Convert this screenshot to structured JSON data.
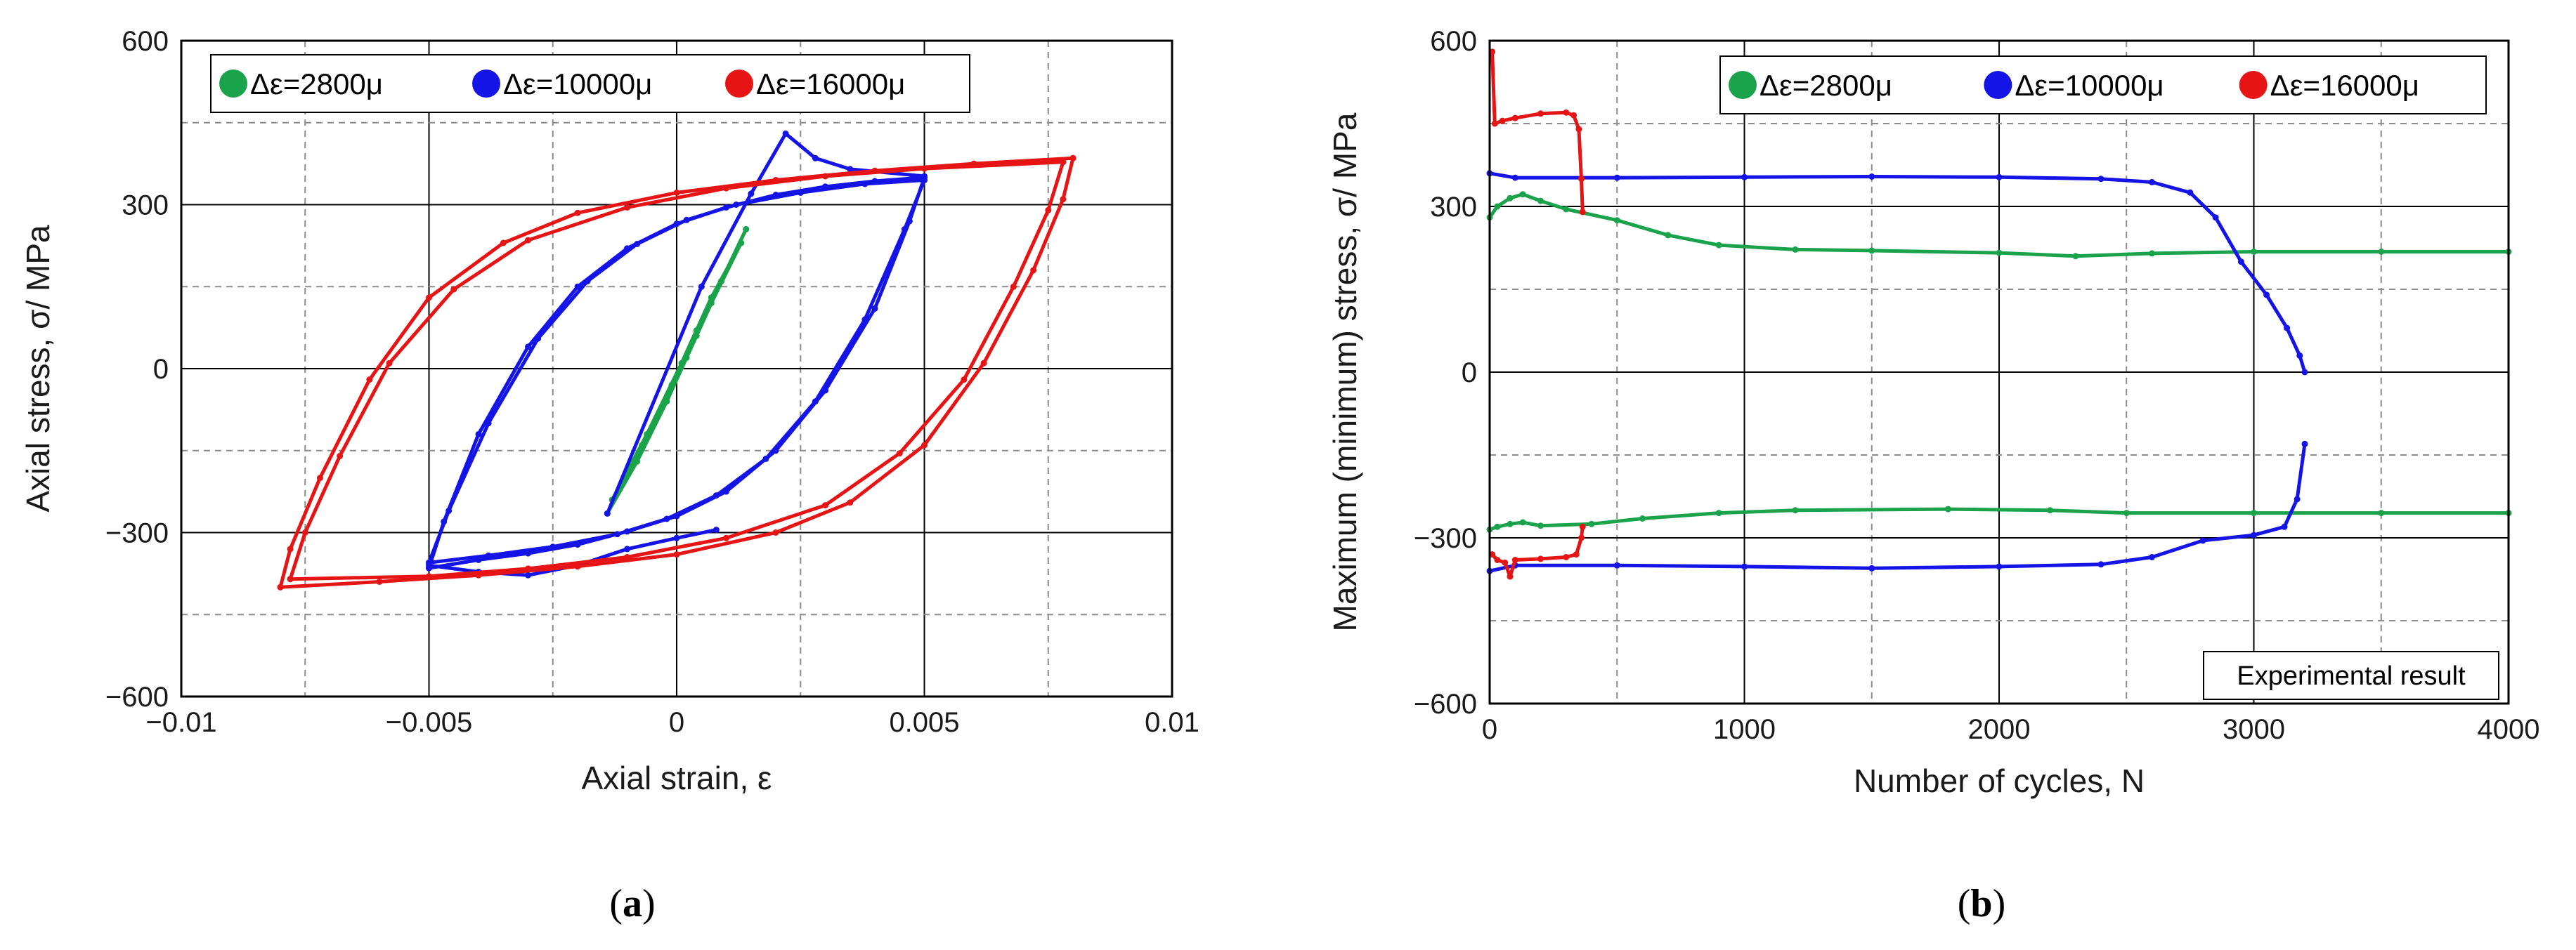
{
  "chart_data": [
    {
      "type": "scatter",
      "panel": "a",
      "title": "",
      "xlabel": "Axial strain, ε",
      "ylabel": "Axial stress, σ/ MPa",
      "xlim": [
        -0.01,
        0.01
      ],
      "ylim": [
        -600,
        600
      ],
      "xticks": [
        -0.01,
        -0.005,
        0,
        0.005,
        0.01
      ],
      "xtick_labels": [
        "−0.01",
        "−0.005",
        "0",
        "0.005",
        "0.01"
      ],
      "yticks": [
        -600,
        -300,
        0,
        300,
        600
      ],
      "ytick_labels": [
        "−600",
        "−300",
        "0",
        "300",
        "600"
      ],
      "grid": true,
      "legend_position": "top-left",
      "series": [
        {
          "name": "Δε=2800μ",
          "color": "#1aa34a",
          "loops": [
            {
              "upper": [
                [
                  -0.0014,
                  -265
                ],
                [
                  -0.0008,
                  -170
                ],
                [
                  -0.0002,
                  -60
                ],
                [
                  0.0004,
                  60
                ],
                [
                  0.0009,
                  160
                ],
                [
                  0.0014,
                  255
                ]
              ],
              "lower": [
                [
                  0.0014,
                  255
                ],
                [
                  0.0009,
                  160
                ],
                [
                  0.0004,
                  70
                ],
                [
                  -0.0001,
                  -30
                ],
                [
                  -0.0007,
                  -140
                ],
                [
                  -0.0014,
                  -265
                ]
              ]
            },
            {
              "upper": [
                [
                  -0.0013,
                  -240
                ],
                [
                  -0.0006,
                  -120
                ],
                [
                  0.0001,
                  10
                ],
                [
                  0.0007,
                  130
                ],
                [
                  0.0013,
                  230
                ]
              ],
              "lower": [
                [
                  0.0013,
                  230
                ],
                [
                  0.0007,
                  120
                ],
                [
                  0.0002,
                  20
                ],
                [
                  -0.0004,
                  -90
                ],
                [
                  -0.0013,
                  -240
                ]
              ]
            }
          ]
        },
        {
          "name": "Δε=10000μ",
          "color": "#1414e6",
          "loops": [
            {
              "upper": [
                [
                  -0.005,
                  -365
                ],
                [
                  -0.0047,
                  -280
                ],
                [
                  -0.004,
                  -120
                ],
                [
                  -0.003,
                  40
                ],
                [
                  -0.002,
                  150
                ],
                [
                  -0.001,
                  220
                ],
                [
                  0,
                  265
                ],
                [
                  0.001,
                  295
                ],
                [
                  0.002,
                  318
                ],
                [
                  0.003,
                  333
                ],
                [
                  0.004,
                  343
                ],
                [
                  0.005,
                  350
                ]
              ],
              "lower": [
                [
                  0.005,
                  350
                ],
                [
                  0.0047,
                  270
                ],
                [
                  0.004,
                  110
                ],
                [
                  0.003,
                  -40
                ],
                [
                  0.002,
                  -150
                ],
                [
                  0.001,
                  -225
                ],
                [
                  0,
                  -270
                ],
                [
                  -0.001,
                  -298
                ],
                [
                  -0.002,
                  -322
                ],
                [
                  -0.003,
                  -338
                ],
                [
                  -0.004,
                  -350
                ],
                [
                  -0.005,
                  -365
                ]
              ]
            },
            {
              "upper": [
                [
                  -0.005,
                  -355
                ],
                [
                  -0.0046,
                  -260
                ],
                [
                  -0.0038,
                  -100
                ],
                [
                  -0.0028,
                  55
                ],
                [
                  -0.0018,
                  160
                ],
                [
                  -0.0008,
                  228
                ],
                [
                  0.0002,
                  272
                ],
                [
                  0.0012,
                  300
                ],
                [
                  0.0025,
                  322
                ],
                [
                  0.0038,
                  338
                ],
                [
                  0.005,
                  345
                ]
              ],
              "lower": [
                [
                  0.005,
                  345
                ],
                [
                  0.0046,
                  255
                ],
                [
                  0.0038,
                  90
                ],
                [
                  0.0028,
                  -60
                ],
                [
                  0.0018,
                  -165
                ],
                [
                  0.0008,
                  -232
                ],
                [
                  -0.0002,
                  -275
                ],
                [
                  -0.0012,
                  -303
                ],
                [
                  -0.0025,
                  -326
                ],
                [
                  -0.0038,
                  -342
                ],
                [
                  -0.005,
                  -355
                ]
              ]
            },
            {
              "upper": [
                [
                  -0.0014,
                  -265
                ],
                [
                  0.0005,
                  150
                ],
                [
                  0.0015,
                  320
                ],
                [
                  0.0022,
                  430
                ],
                [
                  0.0028,
                  385
                ],
                [
                  0.0035,
                  365
                ],
                [
                  0.005,
                  352
                ]
              ],
              "lower": [
                [
                  -0.005,
                  -360
                ],
                [
                  -0.004,
                  -372
                ],
                [
                  -0.003,
                  -378
                ],
                [
                  -0.002,
                  -360
                ],
                [
                  -0.001,
                  -330
                ],
                [
                  0,
                  -310
                ],
                [
                  0.0008,
                  -295
                ]
              ]
            }
          ]
        },
        {
          "name": "Δε=16000μ",
          "color": "#e61414",
          "loops": [
            {
              "upper": [
                [
                  -0.008,
                  -400
                ],
                [
                  -0.0078,
                  -330
                ],
                [
                  -0.0072,
                  -200
                ],
                [
                  -0.0062,
                  -20
                ],
                [
                  -0.005,
                  130
                ],
                [
                  -0.0035,
                  230
                ],
                [
                  -0.002,
                  285
                ],
                [
                  0,
                  322
                ],
                [
                  0.002,
                  345
                ],
                [
                  0.004,
                  362
                ],
                [
                  0.006,
                  375
                ],
                [
                  0.008,
                  385
                ]
              ],
              "lower": [
                [
                  0.008,
                  385
                ],
                [
                  0.0078,
                  310
                ],
                [
                  0.0072,
                  180
                ],
                [
                  0.0062,
                  10
                ],
                [
                  0.005,
                  -140
                ],
                [
                  0.0035,
                  -245
                ],
                [
                  0.002,
                  -300
                ],
                [
                  0,
                  -340
                ],
                [
                  -0.002,
                  -362
                ],
                [
                  -0.004,
                  -378
                ],
                [
                  -0.006,
                  -390
                ],
                [
                  -0.008,
                  -400
                ]
              ]
            },
            {
              "upper": [
                [
                  -0.0078,
                  -385
                ],
                [
                  -0.0075,
                  -300
                ],
                [
                  -0.0068,
                  -160
                ],
                [
                  -0.0058,
                  10
                ],
                [
                  -0.0045,
                  145
                ],
                [
                  -0.003,
                  235
                ],
                [
                  -0.001,
                  295
                ],
                [
                  0.001,
                  330
                ],
                [
                  0.003,
                  352
                ],
                [
                  0.005,
                  366
                ],
                [
                  0.0078,
                  378
                ]
              ],
              "lower": [
                [
                  0.0078,
                  378
                ],
                [
                  0.0075,
                  290
                ],
                [
                  0.0068,
                  150
                ],
                [
                  0.0058,
                  -20
                ],
                [
                  0.0045,
                  -155
                ],
                [
                  0.003,
                  -250
                ],
                [
                  0.001,
                  -310
                ],
                [
                  -0.001,
                  -345
                ],
                [
                  -0.003,
                  -366
                ],
                [
                  -0.005,
                  -380
                ],
                [
                  -0.0078,
                  -385
                ]
              ]
            }
          ]
        }
      ]
    },
    {
      "type": "scatter",
      "panel": "b",
      "title": "",
      "xlabel": "Number of cycles, N",
      "ylabel": "Maximum (minimum) stress, σ/ MPa",
      "xlim": [
        0,
        4000
      ],
      "ylim": [
        -600,
        600
      ],
      "xticks": [
        0,
        1000,
        2000,
        3000,
        4000
      ],
      "xtick_labels": [
        "0",
        "1000",
        "2000",
        "3000",
        "4000"
      ],
      "yticks": [
        -600,
        -300,
        0,
        300,
        600
      ],
      "ytick_labels": [
        "−600",
        "−300",
        "0",
        "300",
        "600"
      ],
      "grid": true,
      "legend_position": "top-right",
      "annotation": "Experimental result",
      "series": [
        {
          "name": "Δε=2800μ",
          "color": "#1aa34a",
          "max": [
            [
              0,
              280
            ],
            [
              30,
              300
            ],
            [
              80,
              315
            ],
            [
              130,
              322
            ],
            [
              200,
              310
            ],
            [
              300,
              295
            ],
            [
              500,
              275
            ],
            [
              700,
              248
            ],
            [
              900,
              230
            ],
            [
              1200,
              222
            ],
            [
              1500,
              220
            ],
            [
              2000,
              216
            ],
            [
              2300,
              210
            ],
            [
              2600,
              215
            ],
            [
              3000,
              218
            ],
            [
              3500,
              218
            ],
            [
              4000,
              218
            ]
          ],
          "min": [
            [
              0,
              -285
            ],
            [
              30,
              -280
            ],
            [
              80,
              -275
            ],
            [
              130,
              -272
            ],
            [
              200,
              -278
            ],
            [
              400,
              -275
            ],
            [
              600,
              -265
            ],
            [
              900,
              -255
            ],
            [
              1200,
              -250
            ],
            [
              1800,
              -248
            ],
            [
              2200,
              -250
            ],
            [
              2500,
              -255
            ],
            [
              3000,
              -255
            ],
            [
              3500,
              -255
            ],
            [
              4000,
              -255
            ]
          ]
        },
        {
          "name": "Δε=10000μ",
          "color": "#1414e6",
          "max": [
            [
              0,
              360
            ],
            [
              100,
              352
            ],
            [
              500,
              352
            ],
            [
              1000,
              353
            ],
            [
              1500,
              354
            ],
            [
              2000,
              353
            ],
            [
              2400,
              350
            ],
            [
              2600,
              344
            ],
            [
              2750,
              325
            ],
            [
              2850,
              280
            ],
            [
              2950,
              200
            ],
            [
              3050,
              140
            ],
            [
              3130,
              80
            ],
            [
              3180,
              30
            ],
            [
              3200,
              0
            ]
          ],
          "min": [
            [
              0,
              -360
            ],
            [
              100,
              -350
            ],
            [
              500,
              -350
            ],
            [
              1000,
              -352
            ],
            [
              1500,
              -355
            ],
            [
              2000,
              -352
            ],
            [
              2400,
              -348
            ],
            [
              2600,
              -335
            ],
            [
              2800,
              -305
            ],
            [
              3000,
              -295
            ],
            [
              3120,
              -280
            ],
            [
              3170,
              -230
            ],
            [
              3200,
              -130
            ]
          ]
        },
        {
          "name": "Δε=16000μ",
          "color": "#e61414",
          "max": [
            [
              10,
              580
            ],
            [
              20,
              450
            ],
            [
              50,
              455
            ],
            [
              100,
              460
            ],
            [
              200,
              468
            ],
            [
              300,
              470
            ],
            [
              330,
              465
            ],
            [
              350,
              440
            ],
            [
              360,
              350
            ],
            [
              365,
              290
            ]
          ],
          "min": [
            [
              10,
              -330
            ],
            [
              30,
              -340
            ],
            [
              60,
              -345
            ],
            [
              80,
              -370
            ],
            [
              100,
              -340
            ],
            [
              200,
              -338
            ],
            [
              300,
              -335
            ],
            [
              340,
              -330
            ],
            [
              360,
              -300
            ],
            [
              365,
              -280
            ]
          ]
        }
      ]
    }
  ],
  "panels": {
    "a": {
      "label": "(a)"
    },
    "b": {
      "label": "(b)"
    }
  }
}
